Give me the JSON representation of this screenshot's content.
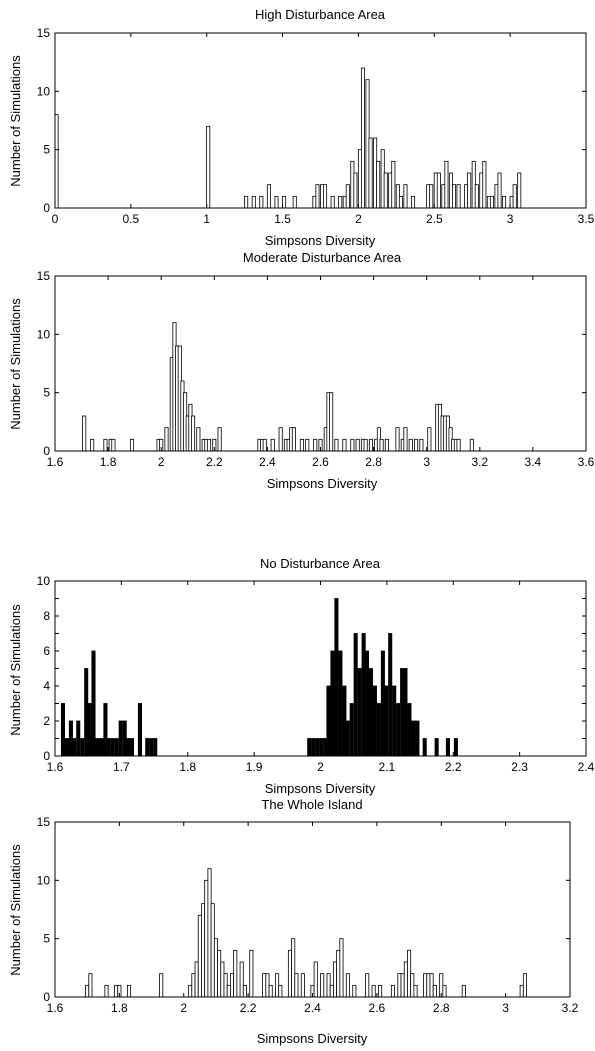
{
  "chart_data": [
    {
      "type": "bar",
      "title": "High Disturbance Area",
      "xlabel": "Simpsons Diversity",
      "ylabel": "Number of Simulations",
      "xlim": [
        0,
        3.5
      ],
      "ylim": [
        0,
        15
      ],
      "xticks": [
        0,
        0.5,
        1,
        1.5,
        2,
        2.5,
        3,
        3.5
      ],
      "xtick_labels": [
        "0",
        "0.5",
        "1",
        "1.5",
        "2",
        "2.5",
        "3",
        "3.5"
      ],
      "yticks": [
        0,
        5,
        10,
        15
      ],
      "ytick_labels": [
        "0",
        "5",
        "10",
        "15"
      ],
      "grid": false,
      "bar_fill": "#ffffff",
      "bin_width": 0.025,
      "x": [
        0.01,
        1.01,
        1.26,
        1.31,
        1.36,
        1.41,
        1.46,
        1.51,
        1.58,
        1.71,
        1.73,
        1.76,
        1.78,
        1.83,
        1.88,
        1.91,
        1.93,
        1.96,
        1.98,
        2.01,
        2.03,
        2.06,
        2.08,
        2.11,
        2.13,
        2.16,
        2.18,
        2.21,
        2.23,
        2.26,
        2.28,
        2.31,
        2.36,
        2.46,
        2.48,
        2.51,
        2.53,
        2.56,
        2.58,
        2.61,
        2.63,
        2.66,
        2.71,
        2.73,
        2.76,
        2.78,
        2.81,
        2.83,
        2.86,
        2.88,
        2.91,
        2.93,
        2.96,
        3.01,
        3.03,
        3.06
      ],
      "values": [
        8,
        7,
        1,
        1,
        1,
        2,
        1,
        1,
        1,
        1,
        2,
        2,
        2,
        1,
        1,
        1,
        2,
        4,
        3,
        5,
        12,
        11,
        6,
        6,
        4,
        5,
        3,
        3,
        4,
        2,
        1,
        2,
        1,
        2,
        2,
        3,
        3,
        2,
        4,
        3,
        2,
        2,
        2,
        3,
        4,
        2,
        3,
        4,
        1,
        1,
        2,
        3,
        1,
        1,
        2,
        3
      ]
    },
    {
      "type": "bar",
      "title": "Moderate Disturbance Area",
      "xlabel": "Simpsons Diversity",
      "ylabel": "Number of Simulations",
      "xlim": [
        1.6,
        3.6
      ],
      "ylim": [
        0,
        15
      ],
      "xticks": [
        1.6,
        1.8,
        2,
        2.2,
        2.4,
        2.6,
        2.8,
        3,
        3.2,
        3.4,
        3.6
      ],
      "xtick_labels": [
        "1.6",
        "1.8",
        "2",
        "2.2",
        "2.4",
        "2.6",
        "2.8",
        "3",
        "3.2",
        "3.4",
        "3.6"
      ],
      "yticks": [
        0,
        5,
        10,
        15
      ],
      "ytick_labels": [
        "0",
        "5",
        "10",
        "15"
      ],
      "grid": false,
      "bar_fill": "#ffffff",
      "bin_width": 0.0145,
      "x": [
        1.71,
        1.74,
        1.79,
        1.81,
        1.82,
        1.89,
        1.99,
        2.0,
        2.02,
        2.04,
        2.05,
        2.06,
        2.07,
        2.08,
        2.09,
        2.1,
        2.11,
        2.12,
        2.14,
        2.16,
        2.17,
        2.18,
        2.2,
        2.22,
        2.37,
        2.38,
        2.39,
        2.42,
        2.45,
        2.47,
        2.48,
        2.49,
        2.5,
        2.53,
        2.55,
        2.58,
        2.6,
        2.62,
        2.63,
        2.64,
        2.66,
        2.69,
        2.72,
        2.74,
        2.76,
        2.77,
        2.79,
        2.81,
        2.82,
        2.83,
        2.85,
        2.89,
        2.91,
        2.92,
        2.94,
        2.96,
        2.98,
        3.01,
        3.04,
        3.05,
        3.06,
        3.07,
        3.08,
        3.09,
        3.1,
        3.11,
        3.12,
        3.17
      ],
      "values": [
        3,
        1,
        1,
        1,
        1,
        1,
        1,
        1,
        2,
        8,
        11,
        9,
        9,
        6,
        5,
        3,
        4,
        3,
        2,
        1,
        1,
        1,
        1,
        2,
        1,
        1,
        1,
        1,
        2,
        1,
        1,
        2,
        2,
        1,
        1,
        1,
        1,
        2,
        5,
        5,
        1,
        1,
        1,
        1,
        1,
        1,
        1,
        1,
        2,
        1,
        1,
        2,
        1,
        2,
        1,
        1,
        1,
        2,
        4,
        4,
        3,
        3,
        3,
        2,
        1,
        1,
        1,
        1
      ]
    },
    {
      "type": "bar",
      "title": "No Disturbance Area",
      "xlabel": "Simpsons Diversity",
      "ylabel": "Number of Simulations",
      "xlim": [
        1.6,
        2.4
      ],
      "ylim": [
        0,
        10
      ],
      "xticks": [
        1.6,
        1.7,
        1.8,
        1.9,
        2,
        2.1,
        2.2,
        2.3,
        2.4
      ],
      "xtick_labels": [
        "1.6",
        "1.7",
        "1.8",
        "1.9",
        "2",
        "2.1",
        "2.2",
        "2.3",
        "2.4"
      ],
      "yticks": [
        0,
        1,
        2,
        3,
        4,
        5,
        6,
        7,
        8,
        9,
        10
      ],
      "ytick_labels": [
        "0",
        "",
        "2",
        "",
        "4",
        "",
        "6",
        "",
        "8",
        "",
        "10"
      ],
      "grid": false,
      "bar_fill": "#000000",
      "bin_width": 0.0058,
      "x": [
        1.612,
        1.618,
        1.624,
        1.629,
        1.635,
        1.641,
        1.647,
        1.652,
        1.658,
        1.664,
        1.67,
        1.676,
        1.681,
        1.687,
        1.693,
        1.699,
        1.705,
        1.71,
        1.716,
        1.728,
        1.739,
        1.745,
        1.751,
        1.983,
        1.989,
        1.995,
        2.001,
        2.007,
        2.012,
        2.018,
        2.024,
        2.03,
        2.036,
        2.041,
        2.047,
        2.053,
        2.059,
        2.065,
        2.07,
        2.076,
        2.082,
        2.088,
        2.094,
        2.099,
        2.105,
        2.111,
        2.117,
        2.123,
        2.128,
        2.134,
        2.14,
        2.146,
        2.157,
        2.175,
        2.192,
        2.204
      ],
      "values": [
        3,
        1,
        2,
        1,
        2,
        1,
        5,
        3,
        6,
        1,
        1,
        3,
        1,
        1,
        1,
        2,
        2,
        1,
        1,
        3,
        1,
        1,
        1,
        1,
        1,
        1,
        1,
        1,
        4,
        6,
        9,
        6,
        4,
        2,
        3,
        7,
        5,
        7,
        6,
        5,
        4,
        3,
        6,
        4,
        7,
        4,
        3,
        5,
        5,
        3,
        2,
        2,
        1,
        1,
        1,
        1
      ]
    },
    {
      "type": "bar",
      "title": "The Whole Island",
      "xlabel": "Simpsons Diversity",
      "ylabel": "Number of Simulations",
      "xlim": [
        1.6,
        3.2
      ],
      "ylim": [
        0,
        15
      ],
      "xticks": [
        1.6,
        1.8,
        2,
        2.2,
        2.4,
        2.6,
        2.8,
        3,
        3.2
      ],
      "xtick_labels": [
        "1.6",
        "1.8",
        "2",
        "2.2",
        "2.4",
        "2.6",
        "2.8",
        "3",
        "3.2"
      ],
      "yticks": [
        0,
        5,
        10,
        15
      ],
      "ytick_labels": [
        "0",
        "5",
        "10",
        "15"
      ],
      "grid": false,
      "bar_fill": "#ffffff",
      "bin_width": 0.0118,
      "x": [
        1.7,
        1.71,
        1.76,
        1.79,
        1.8,
        1.83,
        1.93,
        2.02,
        2.03,
        2.04,
        2.05,
        2.06,
        2.07,
        2.08,
        2.09,
        2.1,
        2.11,
        2.12,
        2.13,
        2.14,
        2.15,
        2.16,
        2.18,
        2.19,
        2.21,
        2.25,
        2.26,
        2.27,
        2.29,
        2.3,
        2.33,
        2.34,
        2.35,
        2.37,
        2.4,
        2.41,
        2.43,
        2.45,
        2.46,
        2.47,
        2.48,
        2.49,
        2.51,
        2.53,
        2.57,
        2.59,
        2.61,
        2.65,
        2.67,
        2.68,
        2.69,
        2.7,
        2.71,
        2.72,
        2.75,
        2.76,
        2.77,
        2.78,
        2.8,
        2.81,
        2.87,
        3.05,
        3.06
      ],
      "values": [
        1,
        2,
        1,
        1,
        1,
        1,
        2,
        1,
        2,
        3,
        7,
        8,
        10,
        11,
        8,
        5,
        4,
        3,
        2,
        1,
        2,
        4,
        3,
        1,
        4,
        2,
        2,
        1,
        2,
        1,
        4,
        5,
        2,
        2,
        1,
        3,
        2,
        2,
        1,
        3,
        4,
        5,
        2,
        1,
        2,
        1,
        1,
        1,
        2,
        2,
        3,
        4,
        2,
        1,
        2,
        2,
        2,
        1,
        2,
        1,
        1,
        1,
        2
      ]
    }
  ]
}
